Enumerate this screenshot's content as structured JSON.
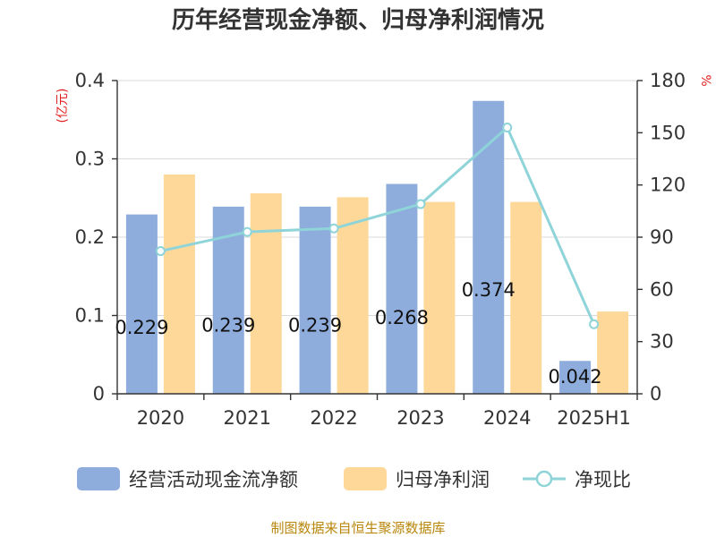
{
  "chart_data": {
    "type": "bar",
    "title": "历年经营现金净额、归母净利润情况",
    "categories": [
      "2020",
      "2021",
      "2022",
      "2023",
      "2024",
      "2025H1"
    ],
    "left_axis": {
      "unit": "(亿元)",
      "ylim": [
        0,
        0.4
      ],
      "ticks": [
        "0",
        "0.1",
        "0.2",
        "0.3",
        "0.4"
      ]
    },
    "right_axis": {
      "unit": "%",
      "ylim": [
        0,
        180
      ],
      "ticks": [
        "0",
        "30",
        "60",
        "90",
        "120",
        "150",
        "180"
      ]
    },
    "grid": true,
    "legend_position": "bottom",
    "series": [
      {
        "name": "经营活动现金流净额",
        "type": "bar",
        "axis": "left",
        "color": "#8eaddc",
        "values": [
          0.229,
          0.239,
          0.239,
          0.268,
          0.374,
          0.042
        ],
        "labels": [
          "0.229",
          "0.239",
          "0.239",
          "0.268",
          "0.374",
          "0.042"
        ]
      },
      {
        "name": "归母净利润",
        "type": "bar",
        "axis": "left",
        "color": "#fdd899",
        "values": [
          0.28,
          0.256,
          0.251,
          0.245,
          0.245,
          0.105
        ]
      },
      {
        "name": "净现比",
        "type": "line",
        "axis": "right",
        "color": "#8ed4d8",
        "values": [
          82,
          93,
          95,
          109,
          153,
          40
        ]
      }
    ],
    "source": "制图数据来自恒生聚源数据库"
  }
}
